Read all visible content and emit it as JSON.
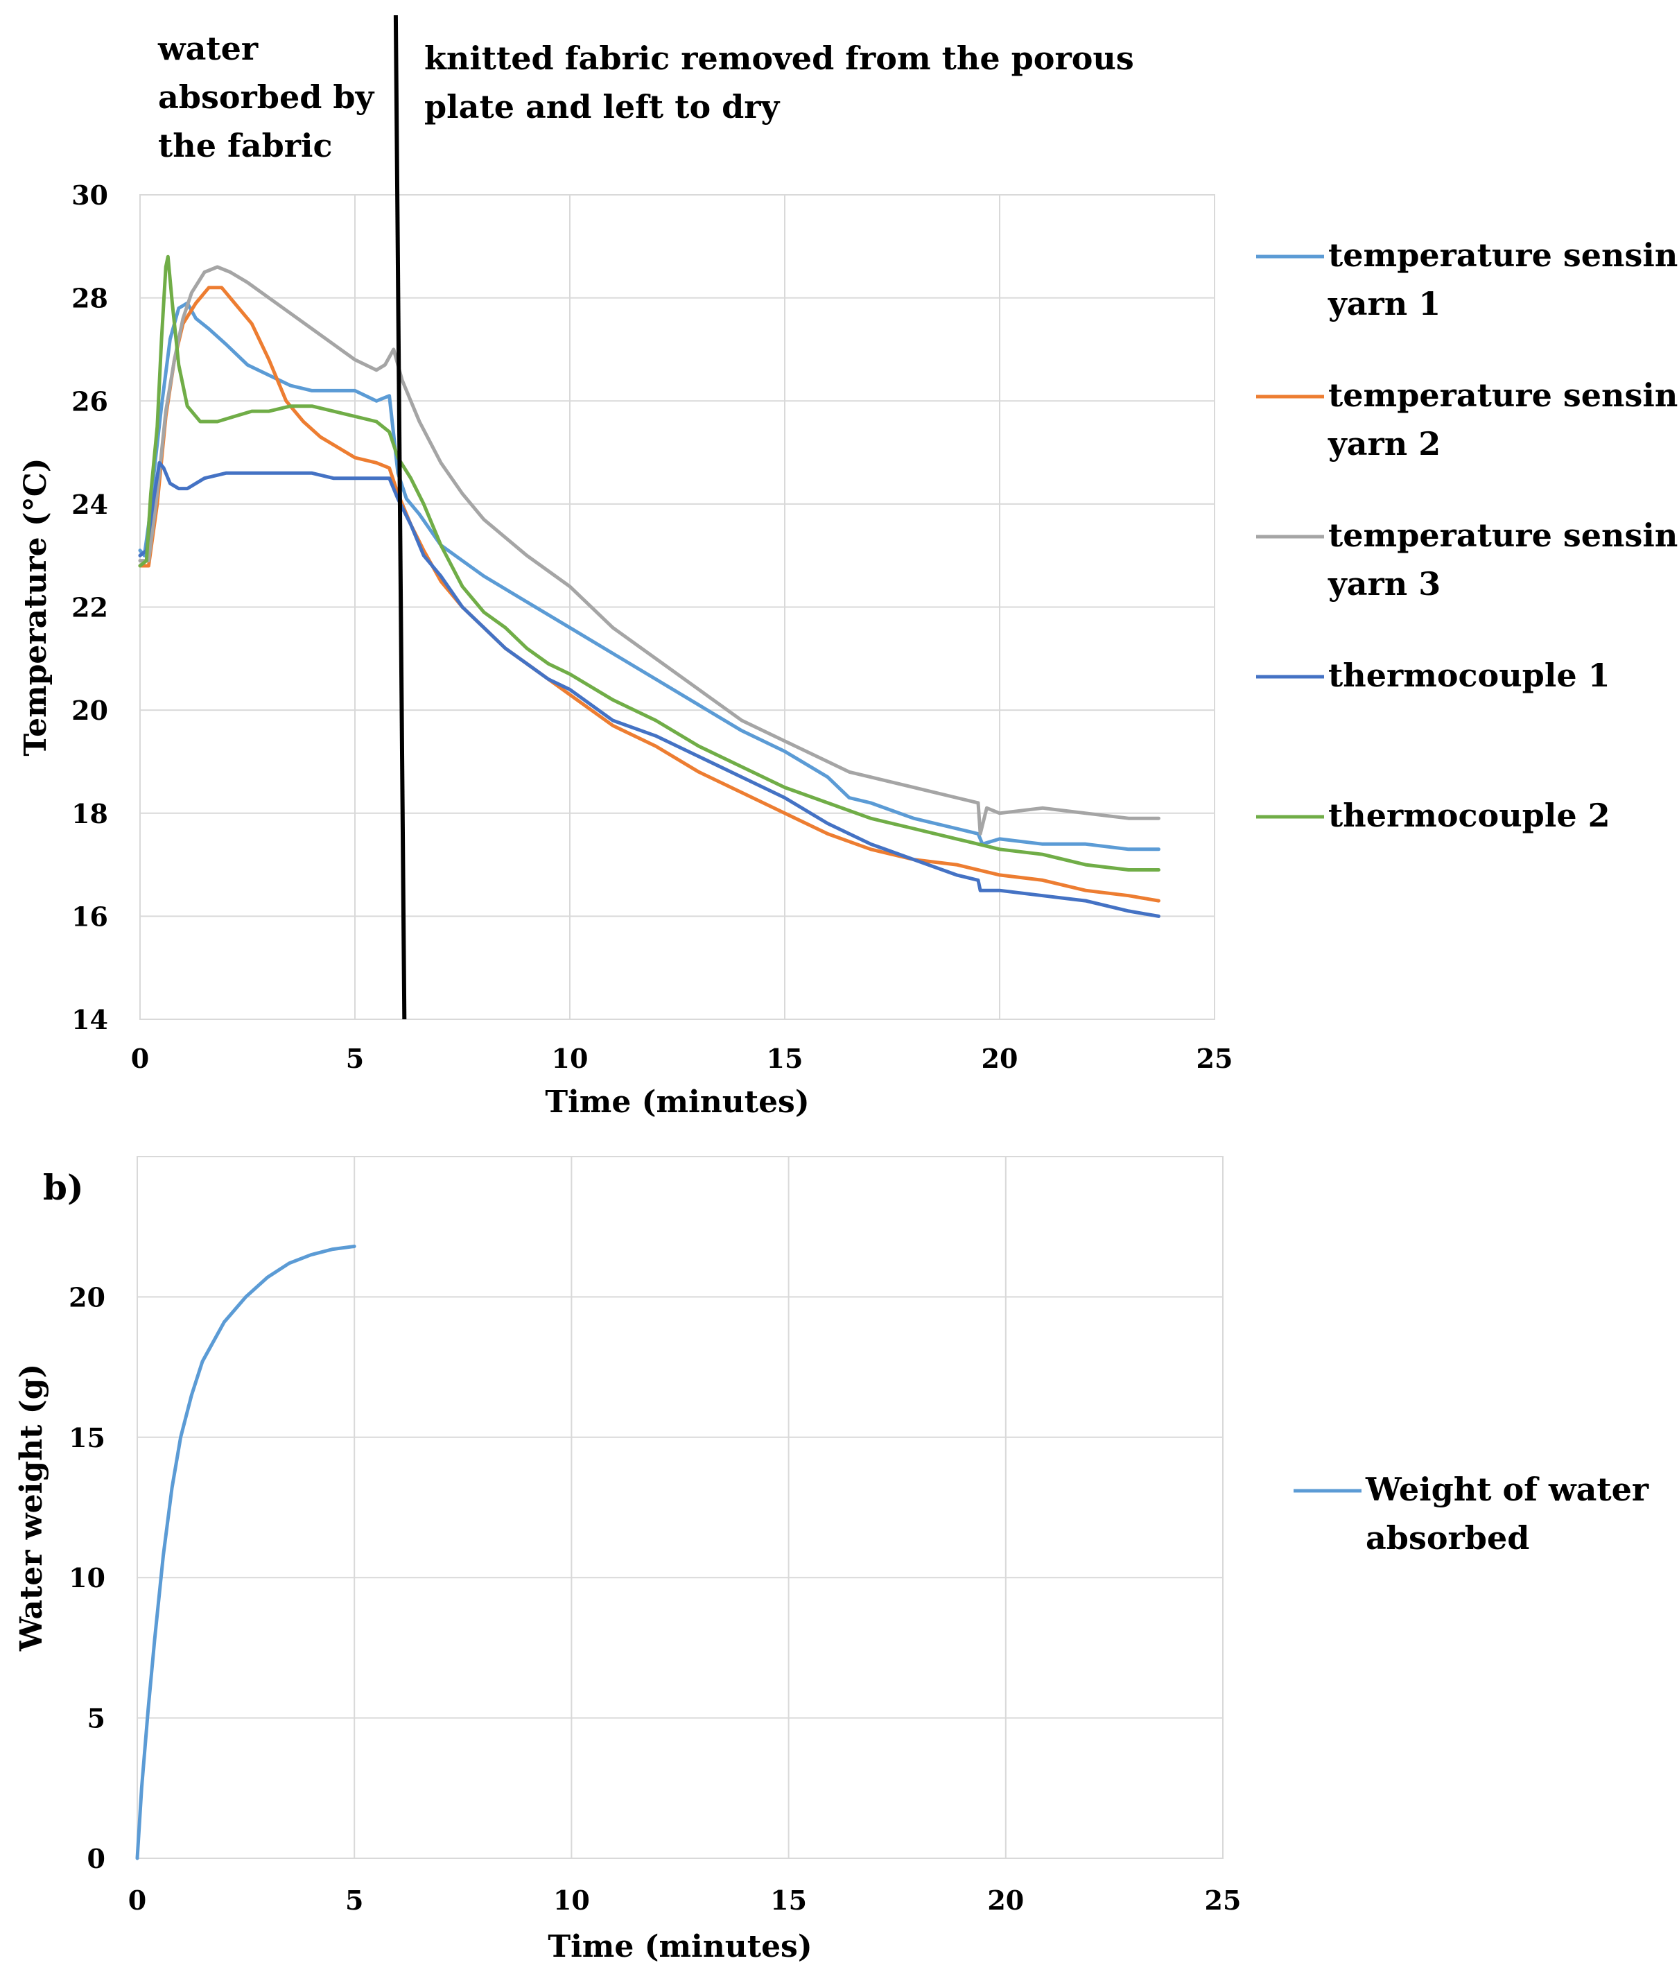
{
  "chart_data": [
    {
      "type": "line",
      "panel_label": "",
      "xlabel": "Time (minutes)",
      "ylabel": "Temperature (°C)",
      "xlim": [
        0,
        25
      ],
      "ylim": [
        14,
        30
      ],
      "xticks": [
        "0",
        "5",
        "10",
        "15",
        "20",
        "25"
      ],
      "yticks": [
        "14",
        "16",
        "18",
        "20",
        "22",
        "24",
        "26",
        "28",
        "30"
      ],
      "grid": true,
      "legend_position": "right",
      "annotations": {
        "left": [
          "water",
          "absorbed by",
          "the fabric"
        ],
        "right": [
          "knitted fabric removed from the porous",
          "plate and left to dry"
        ],
        "divider_x": [
          5.95,
          6.15
        ]
      },
      "series": [
        {
          "name_lines": [
            "temperature sensing",
            "yarn 1"
          ],
          "color": "#5B9BD5",
          "points": [
            [
              0,
              23.1
            ],
            [
              0.1,
              23.0
            ],
            [
              0.2,
              23.6
            ],
            [
              0.35,
              24.8
            ],
            [
              0.5,
              25.9
            ],
            [
              0.7,
              27.2
            ],
            [
              0.9,
              27.8
            ],
            [
              1.1,
              27.9
            ],
            [
              1.3,
              27.6
            ],
            [
              1.6,
              27.4
            ],
            [
              2.0,
              27.1
            ],
            [
              2.5,
              26.7
            ],
            [
              3.0,
              26.5
            ],
            [
              3.5,
              26.3
            ],
            [
              4.0,
              26.2
            ],
            [
              4.5,
              26.2
            ],
            [
              5.0,
              26.2
            ],
            [
              5.5,
              26.0
            ],
            [
              5.8,
              26.1
            ],
            [
              6.0,
              24.6
            ],
            [
              6.2,
              24.1
            ],
            [
              6.5,
              23.8
            ],
            [
              7.0,
              23.2
            ],
            [
              7.5,
              22.9
            ],
            [
              8.0,
              22.6
            ],
            [
              9.0,
              22.1
            ],
            [
              10.0,
              21.6
            ],
            [
              11.0,
              21.1
            ],
            [
              12.0,
              20.6
            ],
            [
              13.0,
              20.1
            ],
            [
              14.0,
              19.6
            ],
            [
              15.0,
              19.2
            ],
            [
              16.0,
              18.7
            ],
            [
              16.5,
              18.3
            ],
            [
              17.0,
              18.2
            ],
            [
              18.0,
              17.9
            ],
            [
              19.0,
              17.7
            ],
            [
              19.5,
              17.6
            ],
            [
              19.6,
              17.4
            ],
            [
              20.0,
              17.5
            ],
            [
              21.0,
              17.4
            ],
            [
              22.0,
              17.4
            ],
            [
              23.0,
              17.3
            ],
            [
              23.7,
              17.3
            ]
          ]
        },
        {
          "name_lines": [
            "temperature sensing",
            "yarn 2"
          ],
          "color": "#ED7D31",
          "points": [
            [
              0,
              22.8
            ],
            [
              0.2,
              22.8
            ],
            [
              0.4,
              24.0
            ],
            [
              0.6,
              25.7
            ],
            [
              0.8,
              26.8
            ],
            [
              1.0,
              27.5
            ],
            [
              1.3,
              27.9
            ],
            [
              1.6,
              28.2
            ],
            [
              1.9,
              28.2
            ],
            [
              2.2,
              27.9
            ],
            [
              2.6,
              27.5
            ],
            [
              3.0,
              26.8
            ],
            [
              3.4,
              26.0
            ],
            [
              3.8,
              25.6
            ],
            [
              4.2,
              25.3
            ],
            [
              4.6,
              25.1
            ],
            [
              5.0,
              24.9
            ],
            [
              5.5,
              24.8
            ],
            [
              5.8,
              24.7
            ],
            [
              6.0,
              24.2
            ],
            [
              6.3,
              23.6
            ],
            [
              6.6,
              23.1
            ],
            [
              7.0,
              22.5
            ],
            [
              7.5,
              22.0
            ],
            [
              8.0,
              21.6
            ],
            [
              8.5,
              21.2
            ],
            [
              9.0,
              20.9
            ],
            [
              9.5,
              20.6
            ],
            [
              10.0,
              20.3
            ],
            [
              11.0,
              19.7
            ],
            [
              12.0,
              19.3
            ],
            [
              13.0,
              18.8
            ],
            [
              14.0,
              18.4
            ],
            [
              15.0,
              18.0
            ],
            [
              16.0,
              17.6
            ],
            [
              17.0,
              17.3
            ],
            [
              18.0,
              17.1
            ],
            [
              19.0,
              17.0
            ],
            [
              20.0,
              16.8
            ],
            [
              21.0,
              16.7
            ],
            [
              22.0,
              16.5
            ],
            [
              23.0,
              16.4
            ],
            [
              23.7,
              16.3
            ]
          ]
        },
        {
          "name_lines": [
            "temperature sensing",
            "yarn 3"
          ],
          "color": "#A5A5A5",
          "points": [
            [
              0,
              22.9
            ],
            [
              0.2,
              22.9
            ],
            [
              0.4,
              24.2
            ],
            [
              0.6,
              25.8
            ],
            [
              0.8,
              26.8
            ],
            [
              1.0,
              27.6
            ],
            [
              1.2,
              28.1
            ],
            [
              1.5,
              28.5
            ],
            [
              1.8,
              28.6
            ],
            [
              2.1,
              28.5
            ],
            [
              2.5,
              28.3
            ],
            [
              3.0,
              28.0
            ],
            [
              3.5,
              27.7
            ],
            [
              4.0,
              27.4
            ],
            [
              4.5,
              27.1
            ],
            [
              5.0,
              26.8
            ],
            [
              5.5,
              26.6
            ],
            [
              5.7,
              26.7
            ],
            [
              5.9,
              27.0
            ],
            [
              6.1,
              26.4
            ],
            [
              6.3,
              26.0
            ],
            [
              6.5,
              25.6
            ],
            [
              7.0,
              24.8
            ],
            [
              7.5,
              24.2
            ],
            [
              8.0,
              23.7
            ],
            [
              9.0,
              23.0
            ],
            [
              10.0,
              22.4
            ],
            [
              11.0,
              21.6
            ],
            [
              12.0,
              21.0
            ],
            [
              13.0,
              20.4
            ],
            [
              14.0,
              19.8
            ],
            [
              15.0,
              19.4
            ],
            [
              16.0,
              19.0
            ],
            [
              16.5,
              18.8
            ],
            [
              17.0,
              18.7
            ],
            [
              18.0,
              18.5
            ],
            [
              19.0,
              18.3
            ],
            [
              19.5,
              18.2
            ],
            [
              19.55,
              17.6
            ],
            [
              19.7,
              18.1
            ],
            [
              20.0,
              18.0
            ],
            [
              21.0,
              18.1
            ],
            [
              22.0,
              18.0
            ],
            [
              23.0,
              17.9
            ],
            [
              23.7,
              17.9
            ]
          ]
        },
        {
          "name_lines": [
            "thermocouple 1"
          ],
          "color": "#4472C4",
          "points": [
            [
              0,
              23.0
            ],
            [
              0.15,
              23.1
            ],
            [
              0.3,
              24.0
            ],
            [
              0.45,
              24.8
            ],
            [
              0.55,
              24.7
            ],
            [
              0.7,
              24.4
            ],
            [
              0.9,
              24.3
            ],
            [
              1.1,
              24.3
            ],
            [
              1.5,
              24.5
            ],
            [
              2.0,
              24.6
            ],
            [
              2.5,
              24.6
            ],
            [
              3.0,
              24.6
            ],
            [
              3.5,
              24.6
            ],
            [
              4.0,
              24.6
            ],
            [
              4.5,
              24.5
            ],
            [
              5.0,
              24.5
            ],
            [
              5.5,
              24.5
            ],
            [
              5.8,
              24.5
            ],
            [
              6.0,
              24.1
            ],
            [
              6.3,
              23.6
            ],
            [
              6.6,
              23.0
            ],
            [
              7.0,
              22.6
            ],
            [
              7.5,
              22.0
            ],
            [
              8.0,
              21.6
            ],
            [
              8.5,
              21.2
            ],
            [
              9.0,
              20.9
            ],
            [
              9.5,
              20.6
            ],
            [
              10.0,
              20.4
            ],
            [
              11.0,
              19.8
            ],
            [
              12.0,
              19.5
            ],
            [
              13.0,
              19.1
            ],
            [
              14.0,
              18.7
            ],
            [
              15.0,
              18.3
            ],
            [
              16.0,
              17.8
            ],
            [
              17.0,
              17.4
            ],
            [
              18.0,
              17.1
            ],
            [
              19.0,
              16.8
            ],
            [
              19.5,
              16.7
            ],
            [
              19.55,
              16.5
            ],
            [
              20.0,
              16.5
            ],
            [
              21.0,
              16.4
            ],
            [
              22.0,
              16.3
            ],
            [
              23.0,
              16.1
            ],
            [
              23.7,
              16.0
            ]
          ]
        },
        {
          "name_lines": [
            "thermocouple 2"
          ],
          "color": "#70AD47",
          "points": [
            [
              0,
              22.8
            ],
            [
              0.15,
              22.9
            ],
            [
              0.25,
              24.2
            ],
            [
              0.4,
              25.5
            ],
            [
              0.5,
              27.2
            ],
            [
              0.6,
              28.6
            ],
            [
              0.65,
              28.8
            ],
            [
              0.75,
              27.9
            ],
            [
              0.9,
              26.7
            ],
            [
              1.1,
              25.9
            ],
            [
              1.4,
              25.6
            ],
            [
              1.8,
              25.6
            ],
            [
              2.2,
              25.7
            ],
            [
              2.6,
              25.8
            ],
            [
              3.0,
              25.8
            ],
            [
              3.5,
              25.9
            ],
            [
              4.0,
              25.9
            ],
            [
              4.5,
              25.8
            ],
            [
              5.0,
              25.7
            ],
            [
              5.5,
              25.6
            ],
            [
              5.8,
              25.4
            ],
            [
              6.0,
              24.9
            ],
            [
              6.3,
              24.5
            ],
            [
              6.6,
              24.0
            ],
            [
              7.0,
              23.2
            ],
            [
              7.5,
              22.4
            ],
            [
              8.0,
              21.9
            ],
            [
              8.5,
              21.6
            ],
            [
              9.0,
              21.2
            ],
            [
              9.5,
              20.9
            ],
            [
              10.0,
              20.7
            ],
            [
              11.0,
              20.2
            ],
            [
              12.0,
              19.8
            ],
            [
              13.0,
              19.3
            ],
            [
              14.0,
              18.9
            ],
            [
              15.0,
              18.5
            ],
            [
              16.0,
              18.2
            ],
            [
              17.0,
              17.9
            ],
            [
              18.0,
              17.7
            ],
            [
              19.0,
              17.5
            ],
            [
              20.0,
              17.3
            ],
            [
              21.0,
              17.2
            ],
            [
              22.0,
              17.0
            ],
            [
              23.0,
              16.9
            ],
            [
              23.7,
              16.9
            ]
          ]
        }
      ]
    },
    {
      "type": "line",
      "panel_label": "b)",
      "xlabel": "Time (minutes)",
      "ylabel": "Water weight (g)",
      "xlim": [
        0,
        25
      ],
      "ylim": [
        0,
        25
      ],
      "xticks": [
        "0",
        "5",
        "10",
        "15",
        "20",
        "25"
      ],
      "yticks": [
        "0",
        "5",
        "10",
        "15",
        "20"
      ],
      "grid": true,
      "legend_position": "right",
      "series": [
        {
          "name_lines": [
            "Weight of water",
            "absorbed"
          ],
          "color": "#5B9BD5",
          "points": [
            [
              0,
              0
            ],
            [
              0.1,
              2.5
            ],
            [
              0.25,
              5.3
            ],
            [
              0.4,
              7.8
            ],
            [
              0.6,
              10.8
            ],
            [
              0.8,
              13.2
            ],
            [
              1.0,
              15.0
            ],
            [
              1.25,
              16.5
            ],
            [
              1.5,
              17.7
            ],
            [
              2.0,
              19.1
            ],
            [
              2.5,
              20.0
            ],
            [
              3.0,
              20.7
            ],
            [
              3.5,
              21.2
            ],
            [
              4.0,
              21.5
            ],
            [
              4.5,
              21.7
            ],
            [
              5.0,
              21.8
            ]
          ]
        }
      ]
    }
  ]
}
